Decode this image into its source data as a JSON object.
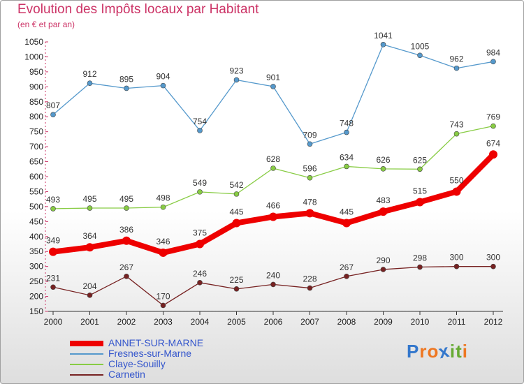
{
  "title": "Evolution des Impôts locaux par Habitant",
  "subtitle": "(en € et par an)",
  "logo": {
    "text": "Proxiti",
    "colors": [
      "#3377cc",
      "#ee7722",
      "#ee7722",
      "#3377cc",
      "#66aa33",
      "#66aa33",
      "#ee7722"
    ]
  },
  "chart_data": {
    "type": "line",
    "title": "Evolution des Impôts locaux par Habitant",
    "ylabel": "(en € et par an)",
    "x": [
      "2000",
      "2001",
      "2002",
      "2003",
      "2004",
      "2005",
      "2006",
      "2007",
      "2008",
      "2009",
      "2010",
      "2011",
      "2012"
    ],
    "ylim": [
      150,
      1050
    ],
    "yticks": [
      150,
      200,
      250,
      300,
      350,
      400,
      450,
      500,
      550,
      600,
      650,
      700,
      750,
      800,
      850,
      900,
      950,
      1000,
      1050
    ],
    "grid": false,
    "legend": "bottom-left",
    "series": [
      {
        "name": "ANNET-SUR-MARNE",
        "color": "#ee0000",
        "values": [
          349,
          364,
          386,
          346,
          375,
          445,
          466,
          478,
          445,
          483,
          515,
          550,
          674
        ]
      },
      {
        "name": "Fresnes-sur-Marne",
        "color": "#5599cc",
        "values": [
          807,
          912,
          895,
          904,
          754,
          923,
          901,
          709,
          748,
          1041,
          1005,
          962,
          984
        ]
      },
      {
        "name": "Claye-Souilly",
        "color": "#88cc44",
        "values": [
          493,
          495,
          495,
          498,
          549,
          542,
          628,
          596,
          634,
          626,
          625,
          743,
          769
        ]
      },
      {
        "name": "Carnetin",
        "color": "#772222",
        "values": [
          231,
          204,
          267,
          170,
          246,
          225,
          240,
          228,
          267,
          290,
          298,
          300,
          300
        ]
      }
    ]
  }
}
